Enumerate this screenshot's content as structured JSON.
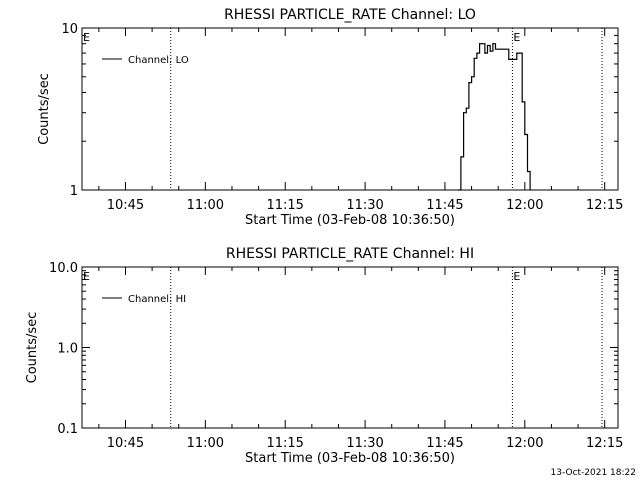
{
  "footer": {
    "timestamp": "13-Oct-2021 18:22"
  },
  "chart_data": [
    {
      "type": "line",
      "title": "RHESSI PARTICLE_RATE Channel: LO",
      "xlabel": "Start Time (03-Feb-08 10:36:50)",
      "ylabel": "Counts/sec",
      "yscale": "log",
      "ylim": [
        1,
        10
      ],
      "y_ticks": [
        {
          "v": 1,
          "label": "1"
        },
        {
          "v": 10,
          "label": "10"
        }
      ],
      "xlim": [
        "10:36:50",
        "12:17:30"
      ],
      "x_ticks": [
        "10:45",
        "11:00",
        "11:15",
        "11:30",
        "11:45",
        "12:00",
        "12:15"
      ],
      "vlines": [
        {
          "t": "10:53:30",
          "mark": ""
        },
        {
          "t": "11:57:40",
          "mark": "E"
        },
        {
          "t": "12:14:30",
          "mark": ""
        }
      ],
      "corner_mark": "E",
      "legend": {
        "placement": "top-left"
      },
      "series": [
        {
          "name": "Channel: LO",
          "x": [
            "11:47:30",
            "11:48:00",
            "11:48:30",
            "11:49:00",
            "11:49:30",
            "11:50:00",
            "11:50:30",
            "11:51:00",
            "11:51:30",
            "11:52:00",
            "11:52:30",
            "11:53:00",
            "11:53:30",
            "11:54:00",
            "11:54:30",
            "11:55:00",
            "11:55:30",
            "11:56:00",
            "11:56:30",
            "11:57:00",
            "11:57:30",
            "11:58:00",
            "11:58:30",
            "11:59:00",
            "11:59:30",
            "12:00:00",
            "12:00:30",
            "12:01:00"
          ],
          "y": [
            1.0,
            1.6,
            3.0,
            3.2,
            4.6,
            5.0,
            6.5,
            7.0,
            8.0,
            8.0,
            7.0,
            7.8,
            7.2,
            8.0,
            7.4,
            7.4,
            7.4,
            7.4,
            7.4,
            6.4,
            6.4,
            6.4,
            7.0,
            7.0,
            3.5,
            2.2,
            1.3,
            1.0
          ]
        }
      ]
    },
    {
      "type": "line",
      "title": "RHESSI PARTICLE_RATE Channel: HI",
      "xlabel": "Start Time (03-Feb-08 10:36:50)",
      "ylabel": "Counts/sec",
      "yscale": "log",
      "ylim": [
        0.1,
        10
      ],
      "y_ticks": [
        {
          "v": 0.1,
          "label": "0.1"
        },
        {
          "v": 1,
          "label": "1.0"
        },
        {
          "v": 10,
          "label": "10.0"
        }
      ],
      "xlim": [
        "10:36:50",
        "12:17:30"
      ],
      "x_ticks": [
        "10:45",
        "11:00",
        "11:15",
        "11:30",
        "11:45",
        "12:00",
        "12:15"
      ],
      "vlines": [
        {
          "t": "10:53:30",
          "mark": ""
        },
        {
          "t": "11:57:40",
          "mark": "E"
        },
        {
          "t": "12:14:30",
          "mark": ""
        }
      ],
      "corner_mark": "E",
      "legend": {
        "placement": "top-left"
      },
      "series": [
        {
          "name": "Channel: HI",
          "x": [],
          "y": []
        }
      ]
    }
  ]
}
